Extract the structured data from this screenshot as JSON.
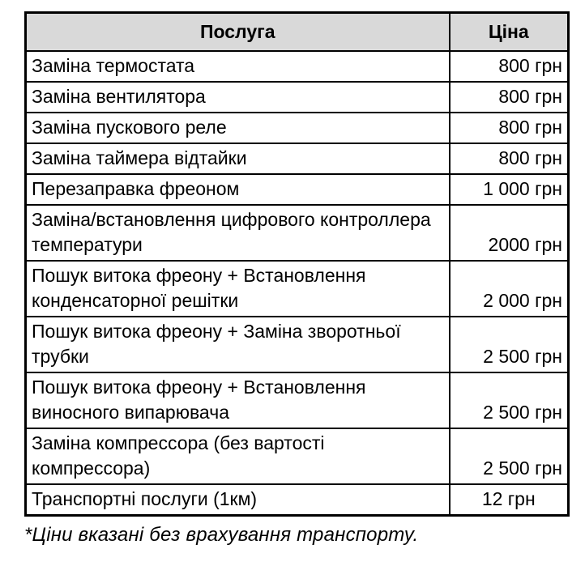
{
  "table": {
    "headers": {
      "service": "Послуга",
      "price": "Ціна"
    },
    "rows": [
      {
        "service": "Заміна термостата",
        "price": "800 грн"
      },
      {
        "service": "Заміна вентилятора",
        "price": "800 грн"
      },
      {
        "service": "Заміна пускового реле",
        "price": "800 грн"
      },
      {
        "service": "Заміна таймера відтайки",
        "price": "800 грн"
      },
      {
        "service": "Перезаправка фреоном",
        "price": "1 000 грн"
      },
      {
        "service": "Заміна/встановлення цифрового контроллера температури",
        "price": "2000 грн"
      },
      {
        "service": "Пошук витока фреону + Встановлення конденсаторної решітки",
        "price": "2 000 грн"
      },
      {
        "service": "Пошук витока фреону + Заміна зворотньої трубки",
        "price": "2 500 грн"
      },
      {
        "service": "Пошук витока фреону + Встановлення виносного випарювача",
        "price": "2 500 грн"
      },
      {
        "service": "Заміна компрессора (без вартості компрессора)",
        "price": "2 500 грн"
      },
      {
        "service": "Транспортні послуги (1км)",
        "price": "12 грн"
      }
    ]
  },
  "footnote": "*Ціни вказані без врахування транспорту.",
  "colors": {
    "header_bg": "#d9d9d9",
    "border": "#000000",
    "text": "#000000",
    "background": "#ffffff"
  }
}
